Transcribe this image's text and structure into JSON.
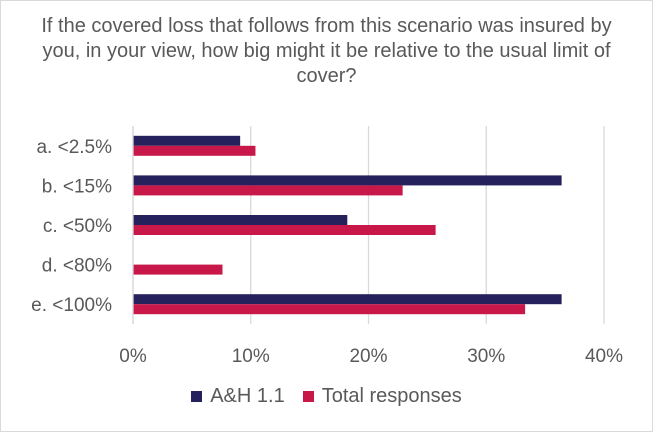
{
  "chart_data": {
    "type": "bar",
    "orientation": "horizontal",
    "title": "If the covered loss that follows from this scenario was insured by you, in your view, how big might it be relative to the usual limit of cover?",
    "categories": [
      "a. <2.5%",
      "b. <15%",
      "c. <50%",
      "d. <80%",
      "e. <100%"
    ],
    "series": [
      {
        "name": "A&H 1.1",
        "color": "#24215c",
        "values": [
          9.1,
          36.4,
          18.2,
          0,
          36.4
        ]
      },
      {
        "name": "Total responses",
        "color": "#c8184a",
        "values": [
          10.4,
          22.9,
          25.7,
          7.6,
          33.3
        ]
      }
    ],
    "xlim": [
      0,
      40
    ],
    "xticks": [
      "0%",
      "10%",
      "20%",
      "30%",
      "40%"
    ],
    "grid": true,
    "legend_position": "bottom"
  }
}
